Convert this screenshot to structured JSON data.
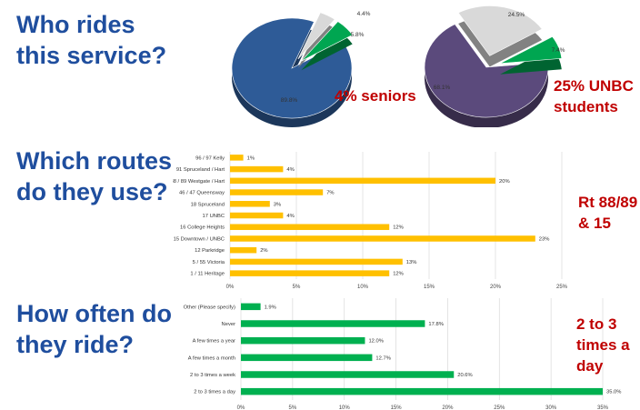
{
  "sections": {
    "riders": {
      "question": [
        "Who rides",
        "this service?"
      ],
      "callout_left": "4% seniors",
      "callout_right": [
        "25% UNBC",
        "students"
      ]
    },
    "routes": {
      "question": [
        "Which routes",
        "do they use?"
      ],
      "callout": [
        "Rt 88/89",
        "& 15"
      ]
    },
    "frequency": {
      "question": [
        "How often do",
        "they ride?"
      ],
      "callout": [
        "2 to 3",
        "times a",
        "day"
      ]
    }
  },
  "colors": {
    "question": "#1f4e9e",
    "callout": "#c00000",
    "bar_routes": "#ffc000",
    "bar_frequency": "#00b050",
    "pie_left_main": "#2e5b97",
    "pie_right_main": "#5b4a7c",
    "pie_green": "#00a651",
    "pie_gray": "#d9d9d9"
  },
  "chart_data": [
    {
      "type": "pie",
      "labels": [
        "89.8%",
        "4.4%",
        "5.8%"
      ],
      "values": [
        89.8,
        4.4,
        5.8
      ],
      "colors": [
        "#2e5b97",
        "#d9d9d9",
        "#00a651"
      ]
    },
    {
      "type": "pie",
      "labels": [
        "68.1%",
        "24.5%",
        "7.4%"
      ],
      "values": [
        68.1,
        24.5,
        7.4
      ],
      "colors": [
        "#5b4a7c",
        "#d9d9d9",
        "#00a651"
      ]
    },
    {
      "type": "bar",
      "orientation": "horizontal",
      "categories": [
        "96 / 97 Kelly",
        "91 Spruceland / Hart",
        "88 / 89 Westgate / Hart",
        "46 / 47 Queensway",
        "18 Spruceland",
        "17 UNBC",
        "16 College Heights",
        "15 Downtown / UNBC",
        "12 Parkridge",
        "5 / 55 Victoria",
        "1 / 11 Heritage"
      ],
      "values": [
        1,
        4,
        20,
        7,
        3,
        4,
        12,
        23,
        2,
        13,
        12
      ],
      "value_labels": [
        "1%",
        "4%",
        "20%",
        "7%",
        "3%",
        "4%",
        "12%",
        "23%",
        "2%",
        "13%",
        "12%"
      ],
      "xticks": [
        "0%",
        "5%",
        "10%",
        "15%",
        "20%",
        "25%"
      ],
      "xlim": [
        0,
        25
      ],
      "grid": true
    },
    {
      "type": "bar",
      "orientation": "horizontal",
      "categories": [
        "Other (Please specify)",
        "Never",
        "A few times a year",
        "A few times a month",
        "2 to 3 times a week",
        "2 to 3 times a day"
      ],
      "values": [
        1.9,
        17.8,
        12.0,
        12.7,
        20.6,
        35.0
      ],
      "value_labels": [
        "1.9%",
        "17.8%",
        "12.0%",
        "12.7%",
        "20.6%",
        "35.0%"
      ],
      "xticks": [
        "0%",
        "5%",
        "10%",
        "15%",
        "20%",
        "25%",
        "30%",
        "35%"
      ],
      "xlim": [
        0,
        35
      ],
      "grid": true
    }
  ]
}
